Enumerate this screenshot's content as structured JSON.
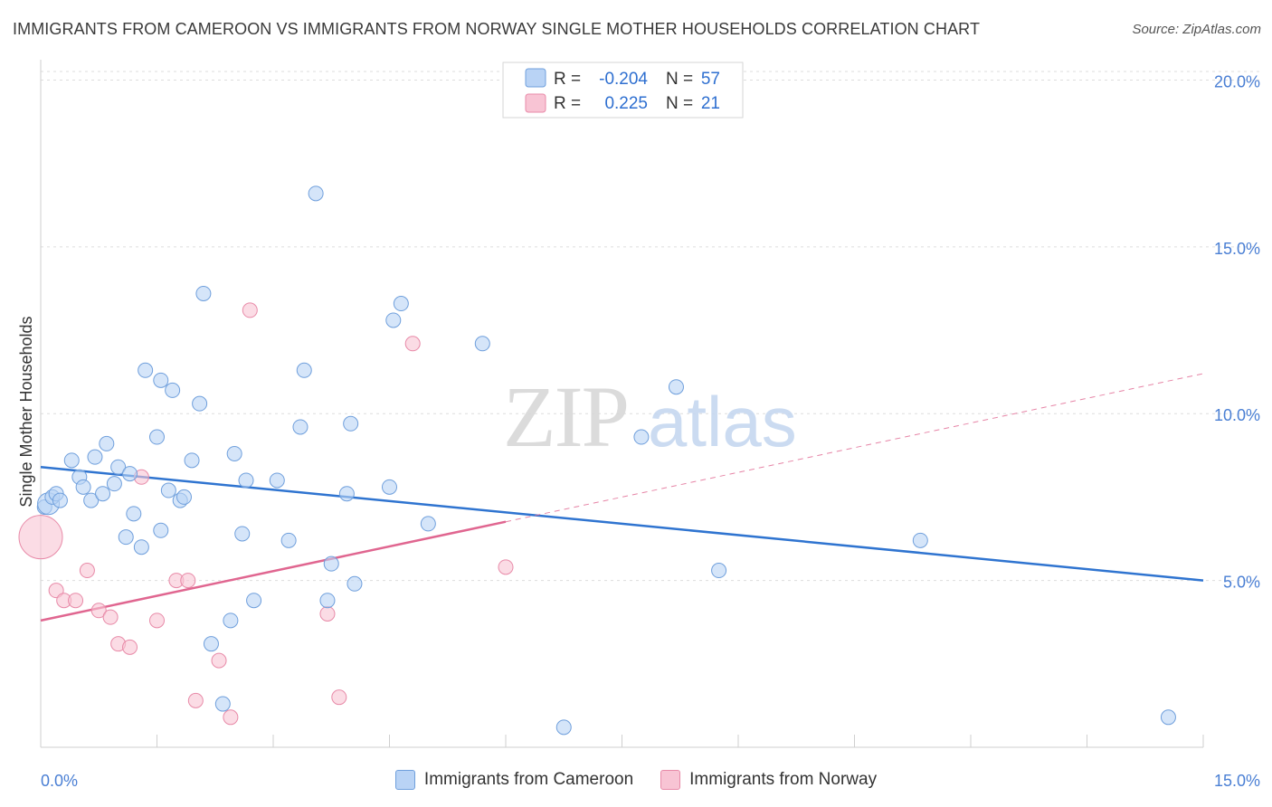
{
  "header": {
    "title": "IMMIGRANTS FROM CAMEROON VS IMMIGRANTS FROM NORWAY SINGLE MOTHER HOUSEHOLDS CORRELATION CHART",
    "source": "Source: ZipAtlas.com"
  },
  "watermark": {
    "part1": "ZIP",
    "part2": "atlas"
  },
  "legend": {
    "r_label": "R =",
    "n_label": "N =",
    "rows": [
      {
        "r": "-0.204",
        "n": "57"
      },
      {
        "r": "0.225",
        "n": "21"
      }
    ]
  },
  "colors": {
    "cameroon_fill": "#b9d3f5",
    "cameroon_stroke": "#6f9fdc",
    "cameroon_line": "#2f74d0",
    "norway_fill": "#f8c4d4",
    "norway_stroke": "#e88aa8",
    "norway_line": "#e06690",
    "tick_label": "#4a7fd4"
  },
  "chart_data": {
    "type": "scatter",
    "title": "IMMIGRANTS FROM CAMEROON VS IMMIGRANTS FROM NORWAY SINGLE MOTHER HOUSEHOLDS CORRELATION CHART",
    "xlabel": "",
    "ylabel": "Single Mother Households",
    "xlim": [
      0,
      15
    ],
    "ylim": [
      0,
      20.5
    ],
    "x_tick_labels": {
      "min": "0.0%",
      "max": "15.0%"
    },
    "y_ticks": [
      5,
      10,
      15,
      20
    ],
    "y_tick_labels": [
      "5.0%",
      "10.0%",
      "15.0%",
      "20.0%"
    ],
    "grid": true,
    "legend_position": "top-center",
    "series": [
      {
        "name": "Immigrants from Cameroon",
        "r": -0.204,
        "n": 57,
        "trend": {
          "x": [
            0,
            15
          ],
          "y": [
            8.4,
            5.0
          ],
          "dashed_after": null
        },
        "points": [
          [
            0.05,
            7.2
          ],
          [
            0.1,
            7.3
          ],
          [
            0.15,
            7.5
          ],
          [
            0.2,
            7.6
          ],
          [
            0.25,
            7.4
          ],
          [
            0.4,
            8.6
          ],
          [
            0.5,
            8.1
          ],
          [
            0.55,
            7.8
          ],
          [
            0.65,
            7.4
          ],
          [
            0.7,
            8.7
          ],
          [
            0.8,
            7.6
          ],
          [
            0.85,
            9.1
          ],
          [
            0.95,
            7.9
          ],
          [
            1.0,
            8.4
          ],
          [
            1.1,
            6.3
          ],
          [
            1.15,
            8.2
          ],
          [
            1.2,
            7.0
          ],
          [
            1.3,
            6.0
          ],
          [
            1.35,
            11.3
          ],
          [
            1.5,
            9.3
          ],
          [
            1.55,
            6.5
          ],
          [
            1.55,
            11.0
          ],
          [
            1.65,
            7.7
          ],
          [
            1.7,
            10.7
          ],
          [
            1.8,
            7.4
          ],
          [
            1.85,
            7.5
          ],
          [
            1.95,
            8.6
          ],
          [
            2.05,
            10.3
          ],
          [
            2.1,
            13.6
          ],
          [
            2.2,
            3.1
          ],
          [
            2.35,
            1.3
          ],
          [
            2.45,
            3.8
          ],
          [
            2.5,
            8.8
          ],
          [
            2.6,
            6.4
          ],
          [
            2.65,
            8.0
          ],
          [
            2.75,
            4.4
          ],
          [
            3.05,
            8.0
          ],
          [
            3.2,
            6.2
          ],
          [
            3.35,
            9.6
          ],
          [
            3.4,
            11.3
          ],
          [
            3.55,
            16.6
          ],
          [
            3.7,
            4.4
          ],
          [
            3.75,
            5.5
          ],
          [
            3.95,
            7.6
          ],
          [
            4.0,
            9.7
          ],
          [
            4.05,
            4.9
          ],
          [
            4.5,
            7.8
          ],
          [
            4.55,
            12.8
          ],
          [
            4.65,
            13.3
          ],
          [
            5.0,
            6.7
          ],
          [
            5.7,
            12.1
          ],
          [
            6.75,
            0.6
          ],
          [
            7.75,
            9.3
          ],
          [
            8.2,
            10.8
          ],
          [
            8.75,
            5.3
          ],
          [
            11.35,
            6.2
          ],
          [
            14.55,
            0.9
          ]
        ]
      },
      {
        "name": "Immigrants from Norway",
        "r": 0.225,
        "n": 21,
        "trend": {
          "x": [
            0,
            15
          ],
          "y": [
            3.8,
            11.2
          ],
          "solid_until_x": 6.0
        },
        "points": [
          [
            0.0,
            6.3
          ],
          [
            0.2,
            4.7
          ],
          [
            0.3,
            4.4
          ],
          [
            0.45,
            4.4
          ],
          [
            0.6,
            5.3
          ],
          [
            0.75,
            4.1
          ],
          [
            0.9,
            3.9
          ],
          [
            1.0,
            3.1
          ],
          [
            1.15,
            3.0
          ],
          [
            1.3,
            8.1
          ],
          [
            1.5,
            3.8
          ],
          [
            1.75,
            5.0
          ],
          [
            1.9,
            5.0
          ],
          [
            2.0,
            1.4
          ],
          [
            2.3,
            2.6
          ],
          [
            2.45,
            0.9
          ],
          [
            2.7,
            13.1
          ],
          [
            3.7,
            4.0
          ],
          [
            3.85,
            1.5
          ],
          [
            4.8,
            12.1
          ],
          [
            6.0,
            5.4
          ]
        ]
      }
    ]
  },
  "bottom_legend": [
    {
      "label": "Immigrants from Cameroon"
    },
    {
      "label": "Immigrants from Norway"
    }
  ]
}
